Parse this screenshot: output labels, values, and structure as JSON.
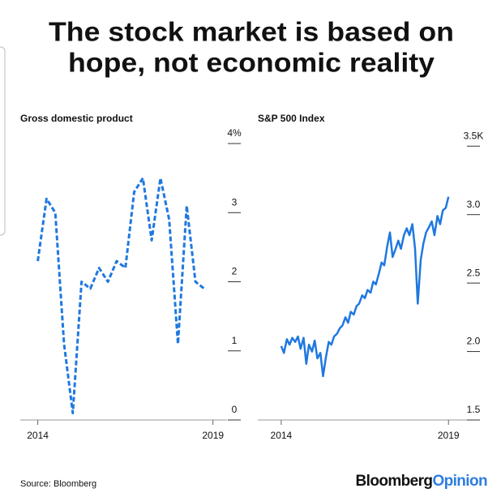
{
  "title_lines": [
    "The stock market is based on",
    "hope, not economic reality"
  ],
  "source": "Source: Bloomberg",
  "logo": [
    "Bloomberg",
    "Opinion"
  ],
  "chart_data": [
    {
      "type": "line",
      "title": "Gross domestic product",
      "color": "#1f78e0",
      "line_style": "dashed",
      "x": [
        2014,
        2014.25,
        2014.5,
        2014.75,
        2015,
        2015.25,
        2015.5,
        2015.75,
        2016,
        2016.25,
        2016.5,
        2016.75,
        2017,
        2017.25,
        2017.5,
        2017.75,
        2018,
        2018.25,
        2018.5,
        2018.75
      ],
      "values": [
        2.3,
        3.2,
        3.0,
        1.1,
        0.1,
        2.0,
        1.9,
        2.2,
        2.0,
        2.3,
        2.2,
        3.3,
        3.5,
        2.6,
        3.5,
        2.9,
        1.1,
        3.1,
        2.0,
        1.9
      ],
      "xlim": [
        2013.5,
        2019.4
      ],
      "xticks": [
        2014,
        2019
      ],
      "ylim": [
        0,
        4.2
      ],
      "yticks": [
        {
          "value": 4,
          "label": "4%"
        },
        3,
        2,
        1,
        0
      ]
    },
    {
      "type": "line",
      "title": "S&P 500 Index",
      "color": "#1f78e0",
      "line_style": "solid",
      "x": [
        2014,
        2014.08,
        2014.17,
        2014.25,
        2014.33,
        2014.42,
        2014.5,
        2014.58,
        2014.67,
        2014.75,
        2014.83,
        2014.92,
        2015,
        2015.08,
        2015.17,
        2015.25,
        2015.33,
        2015.42,
        2015.5,
        2015.58,
        2015.67,
        2015.75,
        2015.83,
        2015.92,
        2016,
        2016.08,
        2016.17,
        2016.25,
        2016.33,
        2016.42,
        2016.5,
        2016.58,
        2016.67,
        2016.75,
        2016.83,
        2016.92,
        2017,
        2017.08,
        2017.17,
        2017.25,
        2017.33,
        2017.42,
        2017.5,
        2017.58,
        2017.67,
        2017.75,
        2017.83,
        2017.92,
        2018,
        2018.08,
        2018.17,
        2018.25,
        2018.33,
        2018.42,
        2018.5,
        2018.58,
        2018.67,
        2018.75,
        2018.83,
        2018.92,
        2019
      ],
      "values": [
        2.04,
        1.99,
        2.09,
        2.05,
        2.1,
        2.07,
        2.11,
        2.02,
        2.1,
        1.91,
        2.05,
        2.0,
        2.08,
        1.95,
        1.99,
        1.82,
        1.95,
        2.07,
        2.05,
        2.11,
        2.13,
        2.17,
        2.19,
        2.25,
        2.21,
        2.29,
        2.27,
        2.33,
        2.35,
        2.41,
        2.39,
        2.45,
        2.43,
        2.51,
        2.49,
        2.57,
        2.65,
        2.63,
        2.77,
        2.87,
        2.69,
        2.75,
        2.81,
        2.75,
        2.85,
        2.9,
        2.85,
        2.93,
        2.75,
        2.35,
        2.67,
        2.79,
        2.87,
        2.91,
        2.95,
        2.85,
        2.99,
        2.93,
        3.03,
        3.05,
        3.13
      ],
      "xlim": [
        2013.3,
        2019.6
      ],
      "xticks": [
        2014,
        2019
      ],
      "ylim": [
        1.5,
        3.62
      ],
      "yticks": [
        {
          "value": 3.5,
          "label": "3.5K"
        },
        {
          "value": 3,
          "label": "3.0"
        },
        2.5,
        {
          "value": 2,
          "label": "2.0"
        },
        1.5
      ]
    }
  ]
}
